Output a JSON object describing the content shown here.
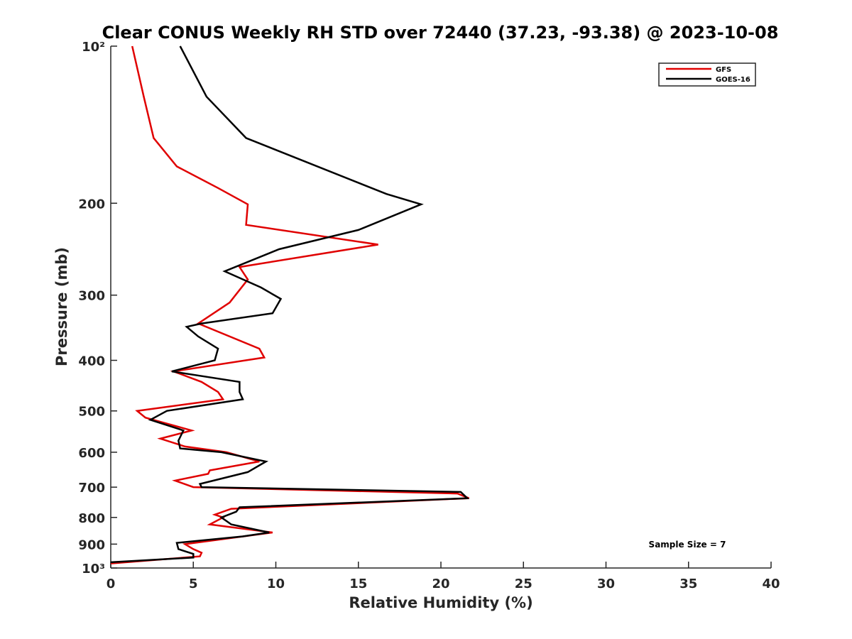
{
  "chart_data": {
    "type": "line",
    "title": "Clear CONUS Weekly RH STD over 72440 (37.23, -93.38) @ 2023-10-08",
    "xlabel": "Relative Humidity (%)",
    "ylabel": "Pressure (mb)",
    "xlim": [
      0,
      40
    ],
    "ylim": [
      100,
      1000
    ],
    "y_scale": "log",
    "y_reversed": true,
    "x_ticks": [
      0,
      5,
      10,
      15,
      20,
      25,
      30,
      35,
      40
    ],
    "x_tick_labels": [
      "0",
      "5",
      "10",
      "15",
      "20",
      "25",
      "30",
      "35",
      "40"
    ],
    "y_ticks": [
      100,
      200,
      300,
      400,
      500,
      600,
      700,
      800,
      900,
      1000
    ],
    "y_tick_labels": [
      "10²",
      "200",
      "300",
      "400",
      "500",
      "600",
      "700",
      "800",
      "900",
      "10³"
    ],
    "grid": false,
    "legend_position": "top-right",
    "annotation": "Sample Size = 7",
    "series": [
      {
        "name": "GFS",
        "color": "#e00000",
        "points": [
          [
            1.3,
            100
          ],
          [
            2.0,
            125
          ],
          [
            2.6,
            150
          ],
          [
            4.0,
            170
          ],
          [
            6.5,
            187
          ],
          [
            8.3,
            201
          ],
          [
            8.2,
            220
          ],
          [
            16.2,
            240
          ],
          [
            7.8,
            265
          ],
          [
            8.3,
            280
          ],
          [
            7.2,
            310
          ],
          [
            5.3,
            340
          ],
          [
            9.0,
            380
          ],
          [
            9.3,
            395
          ],
          [
            3.8,
            420
          ],
          [
            5.5,
            440
          ],
          [
            6.5,
            460
          ],
          [
            6.8,
            475
          ],
          [
            1.6,
            500
          ],
          [
            2.1,
            515
          ],
          [
            4.9,
            545
          ],
          [
            3.0,
            565
          ],
          [
            4.5,
            585
          ],
          [
            7.0,
            600
          ],
          [
            9.0,
            625
          ],
          [
            6.0,
            650
          ],
          [
            5.9,
            660
          ],
          [
            3.9,
            680
          ],
          [
            5.0,
            700
          ],
          [
            21.0,
            720
          ],
          [
            21.7,
            735
          ],
          [
            7.3,
            770
          ],
          [
            6.3,
            790
          ],
          [
            6.8,
            800
          ],
          [
            6.0,
            825
          ],
          [
            9.8,
            855
          ],
          [
            4.5,
            900
          ],
          [
            5.0,
            920
          ],
          [
            5.5,
            935
          ],
          [
            5.4,
            950
          ],
          [
            0.0,
            980
          ]
        ]
      },
      {
        "name": "GOES-16",
        "color": "#000000",
        "points": [
          [
            4.2,
            100
          ],
          [
            5.8,
            125
          ],
          [
            8.2,
            150
          ],
          [
            16.7,
            192
          ],
          [
            18.8,
            201
          ],
          [
            15.0,
            225
          ],
          [
            10.2,
            245
          ],
          [
            6.9,
            270
          ],
          [
            9.1,
            290
          ],
          [
            10.3,
            305
          ],
          [
            9.8,
            325
          ],
          [
            5.5,
            340
          ],
          [
            4.6,
            345
          ],
          [
            5.3,
            360
          ],
          [
            6.5,
            380
          ],
          [
            6.3,
            400
          ],
          [
            3.7,
            420
          ],
          [
            7.8,
            440
          ],
          [
            7.8,
            460
          ],
          [
            8.0,
            475
          ],
          [
            3.4,
            500
          ],
          [
            2.4,
            520
          ],
          [
            4.4,
            545
          ],
          [
            4.1,
            570
          ],
          [
            4.2,
            590
          ],
          [
            6.7,
            600
          ],
          [
            9.4,
            625
          ],
          [
            8.3,
            655
          ],
          [
            5.4,
            690
          ],
          [
            5.5,
            700
          ],
          [
            21.2,
            715
          ],
          [
            21.6,
            735
          ],
          [
            7.8,
            765
          ],
          [
            7.6,
            780
          ],
          [
            6.7,
            800
          ],
          [
            7.3,
            825
          ],
          [
            9.6,
            855
          ],
          [
            8.0,
            870
          ],
          [
            4.0,
            895
          ],
          [
            4.1,
            920
          ],
          [
            5.0,
            940
          ],
          [
            5.0,
            955
          ],
          [
            0.0,
            975
          ]
        ]
      }
    ]
  }
}
